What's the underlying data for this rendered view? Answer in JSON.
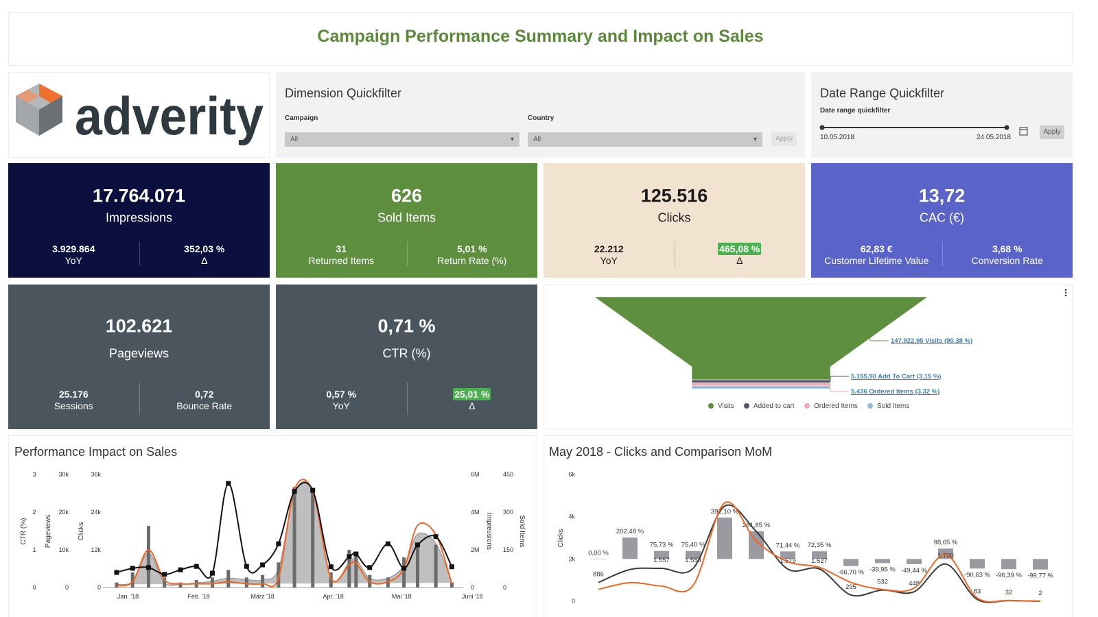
{
  "header": {
    "title": "Campaign Performance Summary and Impact on Sales"
  },
  "logo": {
    "text": "adverity"
  },
  "dimension_filter": {
    "title": "Dimension Quickfilter",
    "fields": [
      {
        "label": "Campaign",
        "value": "All"
      },
      {
        "label": "Country",
        "value": "All"
      }
    ],
    "button": "Apply"
  },
  "date_filter": {
    "title": "Date Range Quickfilter",
    "label": "Date range quickfilter",
    "start": "10.05.2018",
    "end": "24.05.2018",
    "button": "Apply"
  },
  "kpis": [
    {
      "value": "17.764.071",
      "label": "Impressions",
      "color": "#0b0f3d",
      "text_color": "#ffffff",
      "stats": [
        {
          "value": "3.929.864",
          "label": "YoY"
        },
        {
          "value": "352,03 %",
          "label": "Δ"
        }
      ]
    },
    {
      "value": "626",
      "label": "Sold Items",
      "color": "#5e8f3e",
      "text_color": "#ffffff",
      "stats": [
        {
          "value": "31",
          "label": "Returned Items"
        },
        {
          "value": "5,01 %",
          "label": "Return Rate (%)"
        }
      ]
    },
    {
      "value": "125.516",
      "label": "Clicks",
      "color": "#f2e2d0",
      "text_color": "#1a1a1a",
      "stats": [
        {
          "value": "22.212",
          "label": "YoY"
        },
        {
          "value": "465,08 %",
          "label": "Δ",
          "highlight": true
        }
      ]
    },
    {
      "value": "13,72",
      "label": "CAC (€)",
      "color": "#5a64c8",
      "text_color": "#ffffff",
      "stats": [
        {
          "value": "62,83 €",
          "label": "Customer Lifetime Value"
        },
        {
          "value": "3,68 %",
          "label": "Conversion Rate"
        }
      ]
    },
    {
      "value": "102.621",
      "label": "Pageviews",
      "color": "#4b555d",
      "text_color": "#ffffff",
      "stats": [
        {
          "value": "25.176",
          "label": "Sessions"
        },
        {
          "value": "0,72",
          "label": "Bounce Rate"
        }
      ]
    },
    {
      "value": "0,71 %",
      "label": "CTR (%)",
      "color": "#4b555d",
      "text_color": "#ffffff",
      "stats": [
        {
          "value": "0,57 %",
          "label": "YoY"
        },
        {
          "value": "25,01 %",
          "label": "Δ",
          "highlight": true
        }
      ]
    }
  ],
  "funnel": {
    "type": "funnel",
    "categories": [
      "Visits",
      "Added to cart",
      "Ordered Items",
      "Sold Items"
    ],
    "values": [
      147922.95,
      5155.9,
      5436,
      5153
    ],
    "value_labels": [
      "147.922,95 Visits (90.38 %)",
      "5.155,90 Add To Cart (3.15 %)",
      "5.436 Ordered Items (3.32 %)",
      null
    ],
    "colors": [
      "#5e8f3e",
      "#56536e",
      "#f2a7b5",
      "#8ebbe0"
    ]
  },
  "performance_chart": {
    "title": "Performance Impact on Sales",
    "x": [
      -5,
      2,
      9,
      16,
      23,
      30,
      37,
      44,
      52,
      59,
      66,
      73,
      81,
      89,
      97,
      100,
      106,
      114,
      121,
      127,
      135,
      142
    ],
    "xlim": [
      -11,
      147
    ],
    "xticks": [
      {
        "value": 0,
        "label": "Jan. '18"
      },
      {
        "value": 31,
        "label": "Feb. '18"
      },
      {
        "value": 59,
        "label": "März '18"
      },
      {
        "value": 90,
        "label": "Apr. '18"
      },
      {
        "value": 120,
        "label": "Mai '18"
      },
      {
        "value": 151,
        "label": "Juni '18"
      }
    ],
    "axes": {
      "ctr": {
        "title": "CTR (%)",
        "lim": [
          0,
          3
        ],
        "ticks": [
          0,
          1,
          2,
          3
        ]
      },
      "pageviews": {
        "title": "Pageviews",
        "lim": [
          0,
          30000
        ],
        "ticks": [
          0,
          {
            "value": 10000,
            "label": "10k"
          },
          {
            "value": 20000,
            "label": "20k"
          },
          {
            "value": 30000,
            "label": "30k"
          }
        ]
      },
      "clicks": {
        "title": "Clicks",
        "lim": [
          0,
          36000
        ],
        "ticks": [
          0,
          {
            "value": 12000,
            "label": "12k"
          },
          {
            "value": 24000,
            "label": "24k"
          },
          {
            "value": 36000,
            "label": "36k"
          }
        ]
      },
      "impressions": {
        "title": "Impressions",
        "lim": [
          0,
          6000000
        ],
        "ticks": [
          0,
          {
            "value": 2000000,
            "label": "2M"
          },
          {
            "value": 4000000,
            "label": "4M"
          },
          {
            "value": 6000000,
            "label": "6M"
          }
        ]
      },
      "sold_items": {
        "title": "Sold Items",
        "lim": [
          0,
          450
        ],
        "ticks": [
          0,
          150,
          300,
          450
        ]
      }
    },
    "series": [
      {
        "type": "area",
        "axis": "clicks",
        "color": "#a9a9a9",
        "values": [
          1000,
          2000,
          11000,
          1500,
          1000,
          1500,
          2000,
          3000,
          2500,
          2500,
          6000,
          30000,
          31000,
          3000,
          8000,
          9000,
          3000,
          3000,
          7000,
          17000,
          14000,
          1500
        ]
      },
      {
        "type": "bar",
        "axis": "sold_items",
        "color": "#6b6b6b",
        "values": [
          20,
          60,
          245,
          40,
          20,
          30,
          40,
          70,
          40,
          50,
          100,
          400,
          380,
          60,
          150,
          130,
          50,
          40,
          120,
          160,
          170,
          20
        ]
      },
      {
        "type": "line",
        "axis": "impressions",
        "color": "#f26522",
        "values": [
          100000,
          300000,
          2000000,
          400000,
          200000,
          200000,
          200000,
          300000,
          200000,
          200000,
          500000,
          5200000,
          5100000,
          500000,
          1200000,
          1300000,
          300000,
          300000,
          1000000,
          3300000,
          2800000,
          200000
        ]
      },
      {
        "type": "line",
        "axis": "pageviews",
        "color": "#111111",
        "markers": true,
        "values": [
          4000,
          5100,
          5300,
          3500,
          4700,
          5600,
          3800,
          27600,
          5600,
          6000,
          11600,
          25500,
          25800,
          5500,
          8200,
          8900,
          5300,
          11600,
          5100,
          11300,
          13500,
          5500
        ]
      }
    ]
  },
  "clicks_chart": {
    "title": "May 2018 - Clicks and Comparison MoM",
    "y_axis_title": "Clicks",
    "ylim": [
      0,
      6000
    ],
    "yticks": [
      0,
      {
        "value": 2000,
        "label": "2k"
      },
      {
        "value": 4000,
        "label": "4k"
      },
      {
        "value": 6000,
        "label": "6k"
      }
    ],
    "y2lim": [
      -400,
      800
    ],
    "series": [
      {
        "type": "bar",
        "axis": "y2",
        "color": "#9a9aa0",
        "values": [
          0,
          202.48,
          75.73,
          75.4,
          392.1,
          261.85,
          71.44,
          72.35,
          -66.7,
          -39.95,
          -49.44,
          98.65,
          -90.63,
          -96.39,
          -99.77
        ],
        "value_labels": [
          "0,00 %",
          "202,48 %",
          "75,73 %",
          "75,40 %",
          "392,10 %",
          "261,85 %",
          "71,44 %",
          "72,35 %",
          "-66,70 %",
          "-39,95 %",
          "-49,44 %",
          "98,65 %",
          "-90,63 %",
          "-96,39 %",
          "-99,77 %"
        ]
      },
      {
        "type": "line",
        "color": "#3a3a3a",
        "values": [
          886,
          1500,
          1557,
          1554,
          4500,
          3300,
          1519,
          1527,
          295,
          532,
          448,
          1760,
          83,
          32,
          2
        ],
        "value_labels": [
          "886",
          null,
          "1.557",
          "1.554",
          null,
          null,
          "1.519",
          "1.527",
          "295",
          "532",
          "448",
          "1.760",
          "83",
          "32",
          "2"
        ]
      },
      {
        "type": "line",
        "color": "#f26522",
        "values": [
          560,
          880,
          720,
          750,
          4650,
          2850,
          1870,
          1600,
          890,
          560,
          620,
          2200,
          160,
          40,
          10
        ]
      }
    ]
  }
}
